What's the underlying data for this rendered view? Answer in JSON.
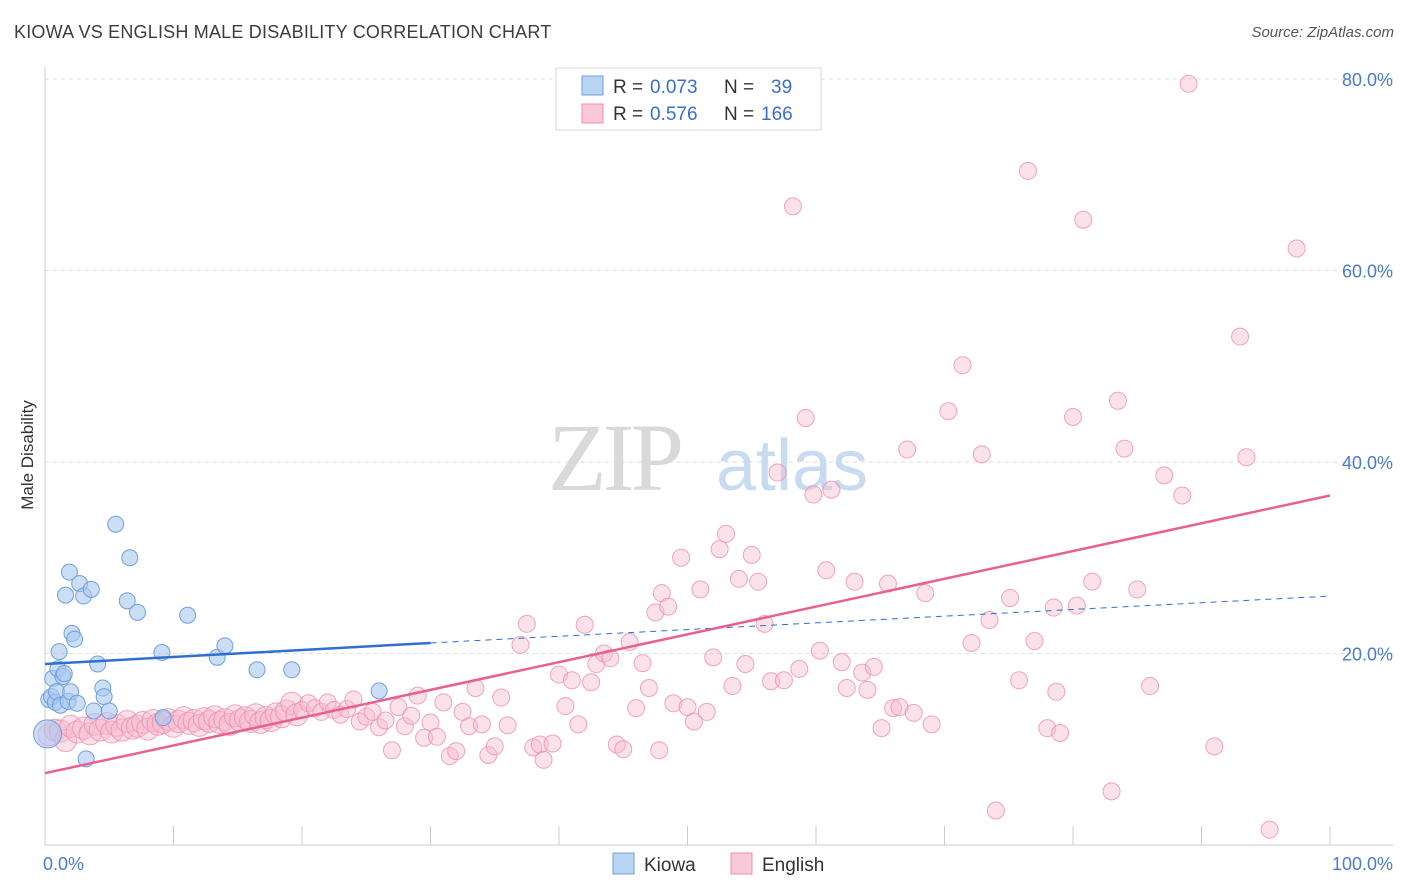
{
  "title": "KIOWA VS ENGLISH MALE DISABILITY CORRELATION CHART",
  "source": "Source: ZipAtlas.com",
  "watermark": {
    "zip": "ZIP",
    "atlas": "atlas"
  },
  "colors": {
    "kiowa_fill": "#a9c8f0",
    "kiowa_stroke": "#6f9fdc",
    "kiowa_line": "#2f6fd0",
    "english_fill": "#f6bcd0",
    "english_stroke": "#ee8fb0",
    "english_line": "#e8608f",
    "tick_text": "#4a7cc7"
  },
  "legend": {
    "rows": [
      {
        "r_label": "R =",
        "r_value": "0.073",
        "n_label": "N =",
        "n_value": "39"
      },
      {
        "r_label": "R =",
        "r_value": "0.576",
        "n_label": "N =",
        "n_value": "166"
      }
    ]
  },
  "bottom_legend": [
    "Kiowa",
    "English"
  ],
  "chart_data": {
    "type": "scatter",
    "ylabel": "Male Disability",
    "xlim": [
      0,
      100
    ],
    "ylim": [
      0,
      80
    ],
    "x_tick_labels": {
      "left": "0.0%",
      "right": "100.0%"
    },
    "y_ticks": [
      20,
      40,
      60,
      80
    ],
    "y_tick_labels": [
      "20.0%",
      "40.0%",
      "60.0%",
      "80.0%"
    ],
    "grid": true,
    "legend_position": "top-center",
    "series": [
      {
        "name": "Kiowa",
        "r": 0.073,
        "n": 39,
        "trend": {
          "x0": 0,
          "y0": 18.9,
          "x1": 30,
          "y1": 21.1,
          "dashed_to_x": 100,
          "dashed_to_y": 26.0
        },
        "points": [
          [
            0.2,
            11.6
          ],
          [
            0.3,
            15.2
          ],
          [
            0.5,
            15.5
          ],
          [
            0.6,
            17.4
          ],
          [
            0.8,
            14.9
          ],
          [
            0.9,
            16.0
          ],
          [
            1.0,
            18.4
          ],
          [
            1.1,
            20.2
          ],
          [
            1.2,
            14.6
          ],
          [
            1.4,
            17.6
          ],
          [
            1.5,
            17.9
          ],
          [
            1.6,
            26.1
          ],
          [
            1.8,
            15.0
          ],
          [
            1.9,
            28.5
          ],
          [
            2.0,
            16.0
          ],
          [
            2.1,
            22.1
          ],
          [
            2.3,
            21.5
          ],
          [
            2.7,
            27.3
          ],
          [
            3.0,
            26.0
          ],
          [
            3.2,
            9.0
          ],
          [
            3.6,
            26.7
          ],
          [
            3.8,
            14.0
          ],
          [
            4.1,
            18.9
          ],
          [
            4.5,
            16.4
          ],
          [
            4.6,
            15.5
          ],
          [
            5.0,
            14.0
          ],
          [
            5.5,
            33.5
          ],
          [
            6.4,
            25.5
          ],
          [
            6.6,
            30.0
          ],
          [
            7.2,
            24.3
          ],
          [
            9.1,
            20.1
          ],
          [
            9.2,
            13.3
          ],
          [
            11.1,
            24.0
          ],
          [
            13.4,
            19.6
          ],
          [
            14.0,
            20.8
          ],
          [
            16.5,
            18.3
          ],
          [
            19.2,
            18.3
          ],
          [
            26.0,
            16.1
          ],
          [
            2.5,
            14.8
          ]
        ]
      },
      {
        "name": "English",
        "r": 0.576,
        "n": 166,
        "trend": {
          "x0": 0,
          "y0": 7.5,
          "x1": 100,
          "y1": 36.5
        },
        "points": [
          [
            0.3,
            11.5
          ],
          [
            0.8,
            12.0
          ],
          [
            1.2,
            11.9
          ],
          [
            1.6,
            10.9
          ],
          [
            2.0,
            12.4
          ],
          [
            2.5,
            11.8
          ],
          [
            3.0,
            12.2
          ],
          [
            3.5,
            11.6
          ],
          [
            3.9,
            12.6
          ],
          [
            4.3,
            12.0
          ],
          [
            4.8,
            12.7
          ],
          [
            5.2,
            11.8
          ],
          [
            5.6,
            12.5
          ],
          [
            6.0,
            12.0
          ],
          [
            6.4,
            12.9
          ],
          [
            6.8,
            12.2
          ],
          [
            7.2,
            12.4
          ],
          [
            7.6,
            12.8
          ],
          [
            8.0,
            12.1
          ],
          [
            8.4,
            13.0
          ],
          [
            8.8,
            12.6
          ],
          [
            9.2,
            12.8
          ],
          [
            9.6,
            13.1
          ],
          [
            10.0,
            12.4
          ],
          [
            10.4,
            12.9
          ],
          [
            10.8,
            13.3
          ],
          [
            11.2,
            12.7
          ],
          [
            11.6,
            13.0
          ],
          [
            12.0,
            12.5
          ],
          [
            12.4,
            13.2
          ],
          [
            12.8,
            12.9
          ],
          [
            13.2,
            13.4
          ],
          [
            13.6,
            12.8
          ],
          [
            14.0,
            13.1
          ],
          [
            14.4,
            12.6
          ],
          [
            14.8,
            13.5
          ],
          [
            15.2,
            13.0
          ],
          [
            15.6,
            13.3
          ],
          [
            16.0,
            12.9
          ],
          [
            16.4,
            13.6
          ],
          [
            16.8,
            12.8
          ],
          [
            17.2,
            13.3
          ],
          [
            17.6,
            13.0
          ],
          [
            18.0,
            13.7
          ],
          [
            18.4,
            13.4
          ],
          [
            18.8,
            14.0
          ],
          [
            19.2,
            14.8
          ],
          [
            19.6,
            13.6
          ],
          [
            20.0,
            14.1
          ],
          [
            20.5,
            14.8
          ],
          [
            21.0,
            14.3
          ],
          [
            21.5,
            13.9
          ],
          [
            22.0,
            14.9
          ],
          [
            22.5,
            14.1
          ],
          [
            23.0,
            13.6
          ],
          [
            23.5,
            14.2
          ],
          [
            24.0,
            15.2
          ],
          [
            24.5,
            12.9
          ],
          [
            25.0,
            13.4
          ],
          [
            25.5,
            13.9
          ],
          [
            26.0,
            12.3
          ],
          [
            26.5,
            13.0
          ],
          [
            27.0,
            9.9
          ],
          [
            27.5,
            14.4
          ],
          [
            28.0,
            12.4
          ],
          [
            28.5,
            13.5
          ],
          [
            29.0,
            15.6
          ],
          [
            29.5,
            11.2
          ],
          [
            30.0,
            12.8
          ],
          [
            30.5,
            11.3
          ],
          [
            31.0,
            14.9
          ],
          [
            31.5,
            9.3
          ],
          [
            32.0,
            9.8
          ],
          [
            32.5,
            13.9
          ],
          [
            33.0,
            12.4
          ],
          [
            33.5,
            16.4
          ],
          [
            34.0,
            12.6
          ],
          [
            34.5,
            9.4
          ],
          [
            35.0,
            10.3
          ],
          [
            35.5,
            15.4
          ],
          [
            36.0,
            12.5
          ],
          [
            37.0,
            20.9
          ],
          [
            37.5,
            23.1
          ],
          [
            38.0,
            10.2
          ],
          [
            38.5,
            10.5
          ],
          [
            38.8,
            8.9
          ],
          [
            39.5,
            10.6
          ],
          [
            40.0,
            17.8
          ],
          [
            40.5,
            14.5
          ],
          [
            41.0,
            17.2
          ],
          [
            41.5,
            12.6
          ],
          [
            42.0,
            23.0
          ],
          [
            42.5,
            17.0
          ],
          [
            42.9,
            18.9
          ],
          [
            43.5,
            20.0
          ],
          [
            44.0,
            19.5
          ],
          [
            44.5,
            10.5
          ],
          [
            45.0,
            10.0
          ],
          [
            45.5,
            21.2
          ],
          [
            46.0,
            14.3
          ],
          [
            46.5,
            19.0
          ],
          [
            47.0,
            16.4
          ],
          [
            47.5,
            24.3
          ],
          [
            48.0,
            26.3
          ],
          [
            48.5,
            24.9
          ],
          [
            48.9,
            14.8
          ],
          [
            49.5,
            30.0
          ],
          [
            50.0,
            14.4
          ],
          [
            50.5,
            12.9
          ],
          [
            51.0,
            26.7
          ],
          [
            51.5,
            13.9
          ],
          [
            52.0,
            19.6
          ],
          [
            52.5,
            30.9
          ],
          [
            53.0,
            32.5
          ],
          [
            53.5,
            16.6
          ],
          [
            54.0,
            27.8
          ],
          [
            54.5,
            18.9
          ],
          [
            55.0,
            30.3
          ],
          [
            55.5,
            27.5
          ],
          [
            56.0,
            23.1
          ],
          [
            56.5,
            17.1
          ],
          [
            57.0,
            38.9
          ],
          [
            57.5,
            17.2
          ],
          [
            58.2,
            66.7
          ],
          [
            58.7,
            18.4
          ],
          [
            59.2,
            44.6
          ],
          [
            59.8,
            36.6
          ],
          [
            60.3,
            20.3
          ],
          [
            60.8,
            28.7
          ],
          [
            61.2,
            37.1
          ],
          [
            62.0,
            19.1
          ],
          [
            62.4,
            16.4
          ],
          [
            63.0,
            27.5
          ],
          [
            63.6,
            18.0
          ],
          [
            64.0,
            16.2
          ],
          [
            64.5,
            18.6
          ],
          [
            65.1,
            12.2
          ],
          [
            65.6,
            27.3
          ],
          [
            66.0,
            14.3
          ],
          [
            66.5,
            14.4
          ],
          [
            67.1,
            41.3
          ],
          [
            67.6,
            13.8
          ],
          [
            68.5,
            26.3
          ],
          [
            69.0,
            12.6
          ],
          [
            70.3,
            45.3
          ],
          [
            71.4,
            50.1
          ],
          [
            72.1,
            21.1
          ],
          [
            72.9,
            40.8
          ],
          [
            73.5,
            23.5
          ],
          [
            74.0,
            3.6
          ],
          [
            75.1,
            25.8
          ],
          [
            75.8,
            17.2
          ],
          [
            76.5,
            70.4
          ],
          [
            77.0,
            21.3
          ],
          [
            78.0,
            12.2
          ],
          [
            78.5,
            24.8
          ],
          [
            78.7,
            16.0
          ],
          [
            79.0,
            11.7
          ],
          [
            80.0,
            44.7
          ],
          [
            80.3,
            25.0
          ],
          [
            80.8,
            65.3
          ],
          [
            81.5,
            27.5
          ],
          [
            83.0,
            5.6
          ],
          [
            83.5,
            46.4
          ],
          [
            84.0,
            41.4
          ],
          [
            85.0,
            26.7
          ],
          [
            86.0,
            16.6
          ],
          [
            87.1,
            38.6
          ],
          [
            88.5,
            36.5
          ],
          [
            89.0,
            79.5
          ],
          [
            91.0,
            10.3
          ],
          [
            93.0,
            53.1
          ],
          [
            93.5,
            40.5
          ],
          [
            95.3,
            1.6
          ],
          [
            97.4,
            62.3
          ],
          [
            47.8,
            9.9
          ]
        ]
      }
    ]
  }
}
